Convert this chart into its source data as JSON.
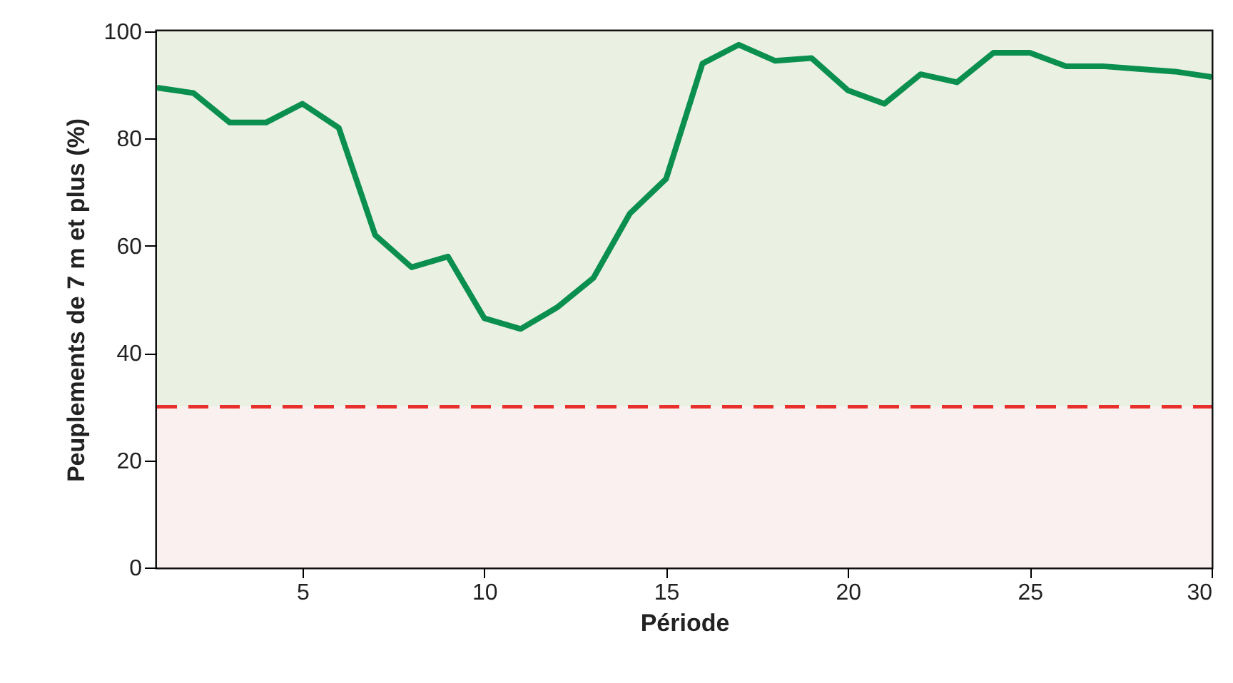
{
  "chart_data": {
    "type": "line",
    "xlabel": "Période",
    "ylabel": "Peuplements de 7 m et plus (%)",
    "x": [
      1,
      2,
      3,
      4,
      5,
      6,
      7,
      8,
      9,
      10,
      11,
      12,
      13,
      14,
      15,
      16,
      17,
      18,
      19,
      20,
      21,
      22,
      23,
      24,
      25,
      26,
      27,
      28,
      29,
      30
    ],
    "series": [
      {
        "color": "#0a8f4f",
        "values": [
          89.5,
          88.5,
          83,
          83,
          86.5,
          82,
          62,
          56,
          58,
          46.5,
          44.5,
          48.5,
          54,
          66,
          72.5,
          94,
          97.5,
          94.5,
          95,
          89,
          86.5,
          92,
          90.5,
          96,
          96,
          93.5,
          93.5,
          93,
          92.5,
          91.5
        ]
      }
    ],
    "xlim": [
      1,
      30
    ],
    "xticks": [
      5,
      10,
      15,
      20,
      25,
      30
    ],
    "ylim": [
      0,
      100
    ],
    "yticks": [
      0,
      20,
      40,
      60,
      80,
      100
    ],
    "bands": [
      {
        "axis": "y",
        "from": 0,
        "to": 30,
        "color": "#fbf0f0"
      },
      {
        "axis": "y",
        "from": 30,
        "to": 100,
        "color": "#eaf1e2"
      }
    ],
    "ref_lines": [
      {
        "axis": "y",
        "value": 30,
        "color": "#e8312d",
        "line_style": "dashed"
      }
    ],
    "grid": false,
    "marker": "none",
    "line_style": "solid"
  }
}
